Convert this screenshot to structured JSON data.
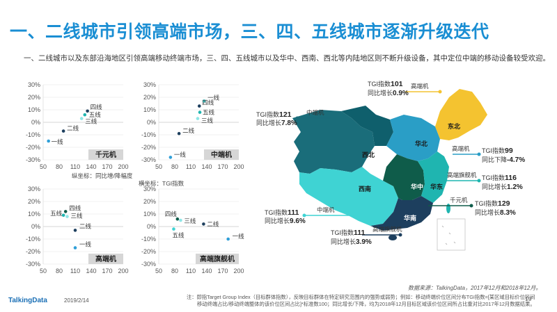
{
  "title": "一、二线城市引领高端市场，三、四、五线城市逐渐升级迭代",
  "subtitle": "一、二线城市以及东部沿海地区引领高端移动终端市场，三、四、五线城市以及华中、西南、西北等内陆地区则不断升级设备，其中定位中端的移动设备较受欢迎。",
  "axis_notes": {
    "y_note": "纵坐标：同比增/降幅度",
    "x_note": "横坐标：TGI指数"
  },
  "colors": {
    "accent": "#1a8ed3",
    "dark_navy": "#1d3f5e",
    "teal_dark": "#0b6e78",
    "teal": "#1fb5b0",
    "cyan": "#3fd3d3",
    "light_cyan": "#8fe6e6",
    "yellow": "#f4c330",
    "green_dark": "#0f5c4a",
    "blue_mid": "#2f7fb8"
  },
  "chart_data": [
    {
      "type": "scatter",
      "tag": "千元机",
      "xlim": [
        50,
        200
      ],
      "ylim": [
        -30,
        30
      ],
      "x_ticks": [
        "50",
        "80",
        "110",
        "140",
        "170",
        "200"
      ],
      "y_ticks": [
        "30%",
        "20%",
        "10%",
        "0%",
        "-10%",
        "-20%",
        "-30%"
      ],
      "points": [
        {
          "label": "四线",
          "x": 133,
          "y": 9,
          "color": "#1d3f5e"
        },
        {
          "label": "五线",
          "x": 128,
          "y": 6,
          "color": "#1fb5b0"
        },
        {
          "label": "三线",
          "x": 122,
          "y": 3,
          "color": "#8fe6e6"
        },
        {
          "label": "二线",
          "x": 88,
          "y": -7,
          "color": "#1d3f5e"
        },
        {
          "label": "一线",
          "x": 60,
          "y": -15,
          "color": "#2f9fd8"
        }
      ]
    },
    {
      "type": "scatter",
      "tag": "中端机",
      "xlim": [
        50,
        200
      ],
      "ylim": [
        -30,
        30
      ],
      "x_ticks": [
        "50",
        "80",
        "110",
        "140",
        "170",
        "200"
      ],
      "y_ticks": [
        "30%",
        "20%",
        "10%",
        "0%",
        "-10%",
        "-20%",
        "-30%"
      ],
      "points": [
        {
          "label": "一线",
          "x": 135,
          "y": 17,
          "color": "#3fd3d3"
        },
        {
          "label": "四线",
          "x": 126,
          "y": 13,
          "color": "#1d3f5e"
        },
        {
          "label": "五线",
          "x": 127,
          "y": 8,
          "color": "#1fb5b0"
        },
        {
          "label": "三线",
          "x": 123,
          "y": 3,
          "color": "#8fe6e6"
        },
        {
          "label": "二线",
          "x": 88,
          "y": -9,
          "color": "#1d3f5e"
        },
        {
          "label": "一线",
          "x": 72,
          "y": -28,
          "color": "#2f9fd8"
        }
      ]
    },
    {
      "type": "scatter",
      "tag": "高端机",
      "xlim": [
        50,
        200
      ],
      "ylim": [
        -30,
        30
      ],
      "x_ticks": [
        "50",
        "80",
        "110",
        "140",
        "170",
        "200"
      ],
      "y_ticks": [
        "30%",
        "20%",
        "10%",
        "0%",
        "-10%",
        "-20%",
        "-30%"
      ],
      "points": [
        {
          "label": "四线",
          "x": 92,
          "y": 12,
          "color": "#0f5c4a"
        },
        {
          "label": "五线",
          "x": 88,
          "y": 9,
          "color": "#1fb5b0"
        },
        {
          "label": "三线",
          "x": 95,
          "y": 8,
          "color": "#8fe6e6"
        },
        {
          "label": "二线",
          "x": 110,
          "y": -3,
          "color": "#1d3f5e"
        },
        {
          "label": "一线",
          "x": 110,
          "y": -17,
          "color": "#2f9fd8"
        }
      ]
    },
    {
      "type": "scatter",
      "tag": "高端旗舰机",
      "xlim": [
        50,
        200
      ],
      "ylim": [
        -30,
        30
      ],
      "x_ticks": [
        "50",
        "80",
        "110",
        "140",
        "170",
        "200"
      ],
      "y_ticks": [
        "30%",
        "20%",
        "10%",
        "0%",
        "-10%",
        "-20%",
        "-30%"
      ],
      "points": [
        {
          "label": "四线",
          "x": 85,
          "y": 6,
          "color": "#0f5c4a"
        },
        {
          "label": "三线",
          "x": 91,
          "y": 5,
          "color": "#8fe6e6"
        },
        {
          "label": "二线",
          "x": 134,
          "y": 2,
          "color": "#1d3f5e"
        },
        {
          "label": "五线",
          "x": 78,
          "y": -2,
          "color": "#3fd3d3"
        },
        {
          "label": "一线",
          "x": 180,
          "y": -10,
          "color": "#2f9fd8"
        }
      ]
    }
  ],
  "map": {
    "regions": {
      "xibei": "西北",
      "xinan": "西南",
      "huabei": "华北",
      "dongbei": "东北",
      "huazhong": "华中",
      "huadong": "华东",
      "huanan": "华南"
    },
    "callouts": [
      {
        "device": "高端机",
        "tgi_label": "TGI指数",
        "tgi": "101",
        "growth_label": "同比增长",
        "growth": "0.9%"
      },
      {
        "device": "中端机",
        "tgi_label": "TGI指数",
        "tgi": "121",
        "growth_label": "同比增长",
        "growth": "7.8%"
      },
      {
        "device": "高端机",
        "tgi_label": "TGI指数",
        "tgi": "99",
        "growth_label": "同比下降",
        "growth": "-4.7%"
      },
      {
        "device": "高端旗舰机",
        "tgi_label": "TGI指数",
        "tgi": "116",
        "growth_label": "同比增长",
        "growth": "1.2%"
      },
      {
        "device": "千元机",
        "tgi_label": "TGI指数",
        "tgi": "129",
        "growth_label": "同比增长",
        "growth": "8.3%"
      },
      {
        "device": "中端机",
        "tgi_label": "TGI指数",
        "tgi": "111",
        "growth_label": "同比增长",
        "growth": "9.6%"
      },
      {
        "device": "高端旗舰机",
        "tgi_label": "TGI指数",
        "tgi": "111",
        "growth_label": "同比增长",
        "growth": "3.9%"
      }
    ]
  },
  "source": "数据来源：TalkingData，2017年12月和2018年12月。",
  "note_line1": "注：即指Target Group Index（目标群体指数），反映目标群体在特定研究范围内的强势或弱势；例如：移动终端价位区间分布TGI指数=[某区域目标价位区间",
  "note_line2": "移动终端占比/移动终端整体的该价位区间占比]*标准数100；同比增长/下降，均为2018年12月目标区域该价位区间所占比重对比2017年12月数据结果。",
  "footer": {
    "logo": "TalkingData",
    "date": "2019/2/14",
    "page": "19"
  }
}
